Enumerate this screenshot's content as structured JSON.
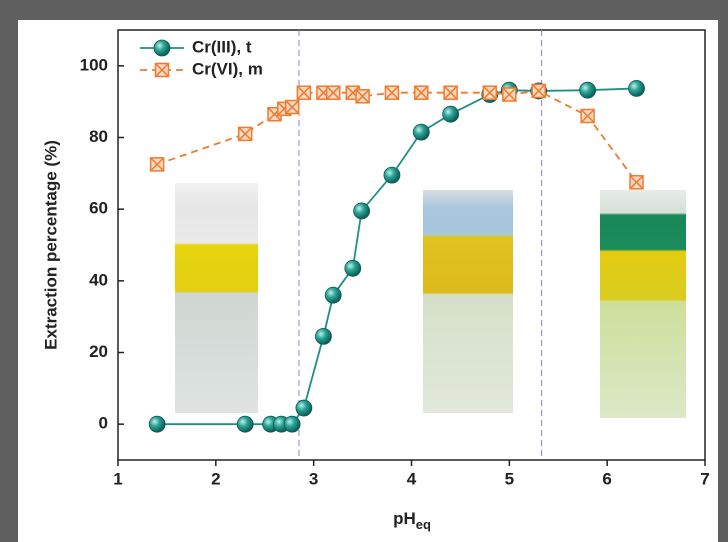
{
  "chart_data": {
    "type": "line",
    "xlabel": "pH",
    "xlabel_subscript": "eq",
    "ylabel": "Extraction percentage (%)",
    "xlim": [
      1,
      7
    ],
    "xticks": [
      1,
      2,
      3,
      4,
      5,
      6,
      7
    ],
    "ylim": [
      -10,
      110
    ],
    "yticks": [
      0,
      20,
      40,
      60,
      80,
      100
    ],
    "legend": "upper left",
    "vlines": [
      2.85,
      5.33
    ],
    "vline_color": "#8a7fc8",
    "series": [
      {
        "name": "Cr(III), t",
        "color": "#1f8f85",
        "marker": "circle",
        "linestyle": "solid",
        "x": [
          1.4,
          2.3,
          2.56,
          2.67,
          2.78,
          2.9,
          3.1,
          3.2,
          3.4,
          3.49,
          3.8,
          4.1,
          4.4,
          4.8,
          5.0,
          5.3,
          5.8,
          6.3
        ],
        "values": [
          0,
          0,
          0,
          0,
          0,
          4.5,
          24.5,
          36,
          43.5,
          59.5,
          69.5,
          81.5,
          86.5,
          92,
          93.2,
          93,
          93.2,
          93.7
        ]
      },
      {
        "name": "Cr(VI), m",
        "color": "#f07a2e",
        "marker": "boxx",
        "linestyle": "dashed",
        "x": [
          1.4,
          2.3,
          2.6,
          2.7,
          2.78,
          2.9,
          3.1,
          3.2,
          3.4,
          3.5,
          3.8,
          4.1,
          4.4,
          4.8,
          5.0,
          5.3,
          5.8,
          6.3
        ],
        "values": [
          72.5,
          81,
          86.5,
          88,
          88.5,
          92.5,
          92.5,
          92.5,
          92.5,
          91.5,
          92.5,
          92.5,
          92.5,
          92.5,
          92,
          93,
          86,
          67.5
        ]
      }
    ]
  }
}
